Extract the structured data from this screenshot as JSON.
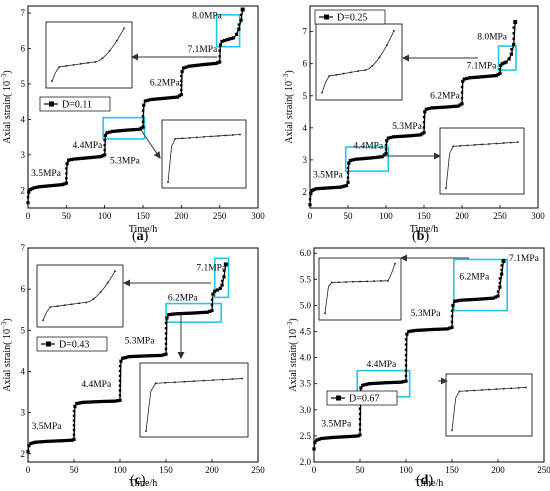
{
  "chart_data": [
    {
      "id": "a",
      "type": "line",
      "panel_label": "a",
      "xlabel": "Time/h",
      "ylabel": "Axial strain",
      "ylabel_unit_base": "10",
      "ylabel_unit_exp": "−3",
      "xlim": [
        0,
        300
      ],
      "ylim": [
        1.5,
        7.2
      ],
      "xticks": [
        0,
        50,
        100,
        150,
        200,
        250,
        300
      ],
      "yticks": [
        2,
        3,
        4,
        5,
        6,
        7
      ],
      "legend": "top-left",
      "series": [
        {
          "name": "D=0.11",
          "x": [
            0,
            1,
            3,
            8,
            15,
            30,
            45,
            50,
            51,
            53,
            60,
            80,
            95,
            100,
            101,
            103,
            110,
            130,
            145,
            150,
            151,
            153,
            160,
            180,
            195,
            200,
            201,
            203,
            210,
            230,
            245,
            250,
            251,
            253,
            260,
            268,
            272,
            275,
            278,
            280
          ],
          "y": [
            1.65,
            1.95,
            2.02,
            2.07,
            2.1,
            2.13,
            2.16,
            2.2,
            2.75,
            2.85,
            2.88,
            2.92,
            2.95,
            3.0,
            3.55,
            3.62,
            3.66,
            3.7,
            3.72,
            3.78,
            4.4,
            4.52,
            4.56,
            4.6,
            4.63,
            4.7,
            5.35,
            5.45,
            5.5,
            5.55,
            5.58,
            5.62,
            6.1,
            6.2,
            6.25,
            6.3,
            6.4,
            6.55,
            6.8,
            7.1
          ]
        }
      ],
      "annotations": [
        "3.5MPa",
        "4.4MPa",
        "5.3MPa",
        "6.2MPa",
        "7.1MPa",
        "8.0MPa"
      ]
    },
    {
      "id": "b",
      "type": "line",
      "panel_label": "b",
      "xlabel": "Time/h",
      "ylabel": "Axial strain",
      "ylabel_unit_base": "10",
      "ylabel_unit_exp": "−3",
      "xlim": [
        0,
        300
      ],
      "ylim": [
        1.5,
        7.8
      ],
      "xticks": [
        0,
        50,
        100,
        150,
        200,
        250,
        300
      ],
      "yticks": [
        2,
        3,
        4,
        5,
        6,
        7
      ],
      "legend": "top-left",
      "series": [
        {
          "name": "D=0.25",
          "x": [
            0,
            1,
            3,
            8,
            20,
            40,
            48,
            50,
            51,
            53,
            60,
            80,
            95,
            100,
            101,
            103,
            110,
            130,
            145,
            150,
            151,
            153,
            160,
            180,
            195,
            200,
            201,
            203,
            210,
            230,
            245,
            250,
            251,
            253,
            258,
            262,
            265,
            268,
            270
          ],
          "y": [
            1.6,
            1.95,
            2.05,
            2.1,
            2.12,
            2.15,
            2.2,
            2.3,
            2.9,
            2.98,
            3.02,
            3.06,
            3.1,
            3.2,
            3.6,
            3.68,
            3.72,
            3.75,
            3.78,
            3.85,
            4.5,
            4.58,
            4.62,
            4.65,
            4.68,
            4.75,
            5.45,
            5.52,
            5.56,
            5.6,
            5.63,
            5.7,
            5.95,
            6.0,
            6.05,
            6.15,
            6.3,
            6.6,
            7.3
          ]
        }
      ],
      "annotations": [
        "3.5MPa",
        "4.4MPa",
        "5.3MPa",
        "6.2MPa",
        "7.1MPa",
        "8.0MPa"
      ]
    },
    {
      "id": "c",
      "type": "line",
      "panel_label": "c",
      "xlabel": "Time/h",
      "ylabel": "Axial strain",
      "ylabel_unit_base": "10",
      "ylabel_unit_exp": "−3",
      "xlim": [
        0,
        250
      ],
      "ylim": [
        1.8,
        7.0
      ],
      "xticks": [
        0,
        50,
        100,
        150,
        200,
        250
      ],
      "yticks": [
        2,
        3,
        4,
        5,
        6,
        7
      ],
      "legend": "center-left",
      "series": [
        {
          "name": "D=0.43",
          "x": [
            0,
            1,
            3,
            8,
            20,
            40,
            48,
            50,
            51,
            53,
            60,
            80,
            95,
            100,
            101,
            103,
            110,
            130,
            145,
            150,
            151,
            153,
            160,
            180,
            195,
            200,
            201,
            203,
            206,
            209,
            211,
            213,
            215
          ],
          "y": [
            2.05,
            2.2,
            2.25,
            2.28,
            2.3,
            2.32,
            2.33,
            2.35,
            3.15,
            3.22,
            3.25,
            3.27,
            3.28,
            3.3,
            4.25,
            4.32,
            4.36,
            4.38,
            4.39,
            4.42,
            5.3,
            5.38,
            5.4,
            5.42,
            5.44,
            5.48,
            5.88,
            5.95,
            5.98,
            6.02,
            6.1,
            6.3,
            6.6
          ]
        }
      ],
      "annotations": [
        "3.5MPa",
        "4.4MPa",
        "5.3MPa",
        "6.2MPa",
        "7.1MPa"
      ]
    },
    {
      "id": "d",
      "type": "line",
      "panel_label": "d",
      "xlabel": "Time/h",
      "ylabel": "Axial strain",
      "ylabel_unit_base": "10",
      "ylabel_unit_exp": "−3",
      "xlim": [
        0,
        250
      ],
      "ylim": [
        2.0,
        6.1
      ],
      "xticks": [
        0,
        50,
        100,
        150,
        200,
        250
      ],
      "yticks": [
        2.0,
        2.5,
        3.0,
        3.5,
        4.0,
        4.5,
        5.0,
        5.5,
        6.0
      ],
      "legend": "center-left",
      "series": [
        {
          "name": "D=0.67",
          "x": [
            0,
            1,
            3,
            8,
            20,
            40,
            48,
            50,
            51,
            53,
            60,
            80,
            95,
            100,
            101,
            103,
            110,
            130,
            145,
            150,
            151,
            153,
            160,
            180,
            195,
            200,
            202,
            204,
            206
          ],
          "y": [
            2.25,
            2.38,
            2.42,
            2.45,
            2.47,
            2.49,
            2.5,
            2.52,
            3.42,
            3.47,
            3.5,
            3.52,
            3.53,
            3.55,
            4.45,
            4.5,
            4.52,
            4.54,
            4.55,
            4.58,
            5.0,
            5.08,
            5.1,
            5.12,
            5.14,
            5.18,
            5.35,
            5.6,
            5.85
          ]
        }
      ],
      "annotations": [
        "3.5MPa",
        "4.4MPa",
        "5.3MPa",
        "6.2MPa",
        "7.1MPa"
      ]
    }
  ],
  "colors": {
    "line": "#000000",
    "highlight": "#22c8e6",
    "arrow": "#333333"
  }
}
